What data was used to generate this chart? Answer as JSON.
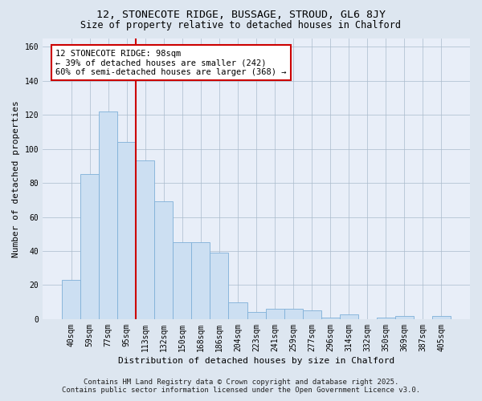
{
  "title": "12, STONECOTE RIDGE, BUSSAGE, STROUD, GL6 8JY",
  "subtitle": "Size of property relative to detached houses in Chalford",
  "xlabel": "Distribution of detached houses by size in Chalford",
  "ylabel": "Number of detached properties",
  "bar_labels": [
    "40sqm",
    "59sqm",
    "77sqm",
    "95sqm",
    "113sqm",
    "132sqm",
    "150sqm",
    "168sqm",
    "186sqm",
    "204sqm",
    "223sqm",
    "241sqm",
    "259sqm",
    "277sqm",
    "296sqm",
    "314sqm",
    "332sqm",
    "350sqm",
    "369sqm",
    "387sqm",
    "405sqm"
  ],
  "bar_values": [
    23,
    85,
    122,
    104,
    93,
    69,
    45,
    45,
    39,
    10,
    4,
    6,
    6,
    5,
    1,
    3,
    0,
    1,
    2,
    0,
    2
  ],
  "bar_color": "#ccdff2",
  "bar_edge_color": "#7fb0d8",
  "vline_x": 3.5,
  "vline_color": "#cc0000",
  "annotation_line1": "12 STONECOTE RIDGE: 98sqm",
  "annotation_line2": "← 39% of detached houses are smaller (242)",
  "annotation_line3": "60% of semi-detached houses are larger (368) →",
  "annotation_box_color": "#ffffff",
  "annotation_box_edge": "#cc0000",
  "ylim": [
    0,
    165
  ],
  "yticks": [
    0,
    20,
    40,
    60,
    80,
    100,
    120,
    140,
    160
  ],
  "bg_color": "#dde6f0",
  "plot_bg_color": "#e8eef8",
  "footer_line1": "Contains HM Land Registry data © Crown copyright and database right 2025.",
  "footer_line2": "Contains public sector information licensed under the Open Government Licence v3.0.",
  "title_fontsize": 9.5,
  "subtitle_fontsize": 8.5,
  "axis_label_fontsize": 8,
  "tick_fontsize": 7,
  "annotation_fontsize": 7.5,
  "footer_fontsize": 6.5
}
